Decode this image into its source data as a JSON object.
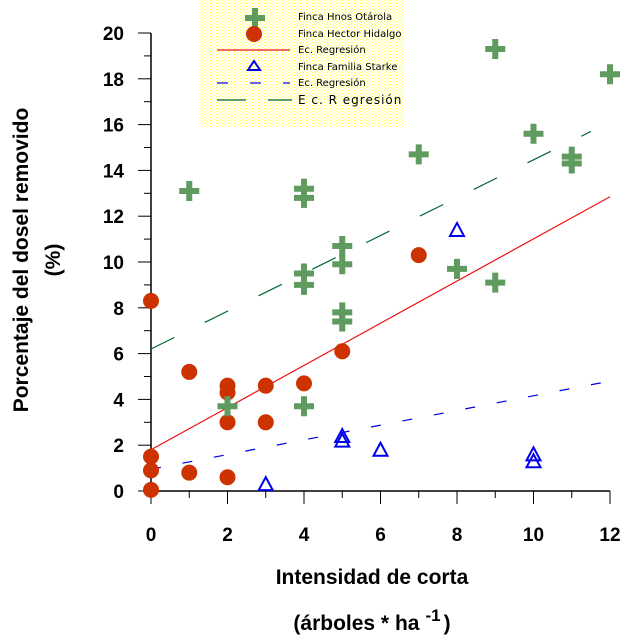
{
  "chart_data": {
    "type": "scatter",
    "title": "",
    "xlabel": "Intensidad de corta",
    "xlabel_line2": "(árboles * ha",
    "xlabel_superscript": "-1",
    "xlabel_close": ")",
    "ylabel": "Porcentaje del dosel removido",
    "ylabel_line2": "(%)",
    "xlim": [
      0,
      12
    ],
    "ylim": [
      0,
      20
    ],
    "x_ticks": [
      "0",
      "2",
      "4",
      "6",
      "8",
      "10",
      "12"
    ],
    "y_ticks": [
      "0",
      "2",
      "4",
      "6",
      "8",
      "10",
      "12",
      "14",
      "16",
      "18",
      "20"
    ],
    "grid": false,
    "legend_position": "top-center",
    "colors": {
      "otarola": "#5f9a5f",
      "hidalgo": "#cc3300",
      "starke": "#0000ee",
      "reg_hidalgo": "#ee1111",
      "reg_starke": "#0000dd",
      "reg_otarola": "#006633",
      "legend_bg": "#ffff66"
    },
    "series": [
      {
        "name": "Finca Hnos Otárola",
        "marker": "plus",
        "points": [
          [
            1,
            13.1
          ],
          [
            2,
            3.7
          ],
          [
            4,
            13.2
          ],
          [
            4,
            12.8
          ],
          [
            4,
            9.5
          ],
          [
            4,
            9.0
          ],
          [
            4,
            3.7
          ],
          [
            5,
            10.7
          ],
          [
            5,
            9.9
          ],
          [
            5,
            7.8
          ],
          [
            5,
            7.4
          ],
          [
            7,
            14.7
          ],
          [
            8,
            9.7
          ],
          [
            9,
            19.3
          ],
          [
            9,
            9.1
          ],
          [
            10,
            15.6
          ],
          [
            11,
            14.6
          ],
          [
            11,
            14.3
          ],
          [
            12,
            18.2
          ]
        ]
      },
      {
        "name": "Finca Hector Hidalgo",
        "marker": "circle",
        "points": [
          [
            0,
            8.3
          ],
          [
            0,
            1.5
          ],
          [
            0,
            0.9
          ],
          [
            0,
            0.05
          ],
          [
            1,
            5.2
          ],
          [
            1,
            0.8
          ],
          [
            2,
            4.6
          ],
          [
            2,
            4.3
          ],
          [
            2,
            3.0
          ],
          [
            2,
            0.6
          ],
          [
            3,
            4.6
          ],
          [
            3,
            3.0
          ],
          [
            4,
            4.7
          ],
          [
            5,
            6.1
          ],
          [
            7,
            10.3
          ]
        ]
      },
      {
        "name": "Ec. Regresión",
        "marker": "line-solid",
        "for": "hidalgo",
        "line": [
          [
            0,
            1.8
          ],
          [
            12,
            12.85
          ]
        ]
      },
      {
        "name": "Finca Familia Starke",
        "marker": "triangle",
        "points": [
          [
            3,
            0.3
          ],
          [
            5,
            2.4
          ],
          [
            5,
            2.2
          ],
          [
            6,
            1.8
          ],
          [
            8,
            11.4
          ],
          [
            10,
            1.6
          ],
          [
            10,
            1.3
          ]
        ]
      },
      {
        "name": "Ec. Regresión",
        "marker": "line-dashed-short",
        "for": "starke",
        "line": [
          [
            0,
            0.95
          ],
          [
            12,
            4.8
          ]
        ]
      },
      {
        "name": "E c. R egresión",
        "marker": "line-dashed-long",
        "for": "otarola",
        "line": [
          [
            0,
            6.2
          ],
          [
            11.5,
            15.7
          ]
        ]
      }
    ]
  }
}
